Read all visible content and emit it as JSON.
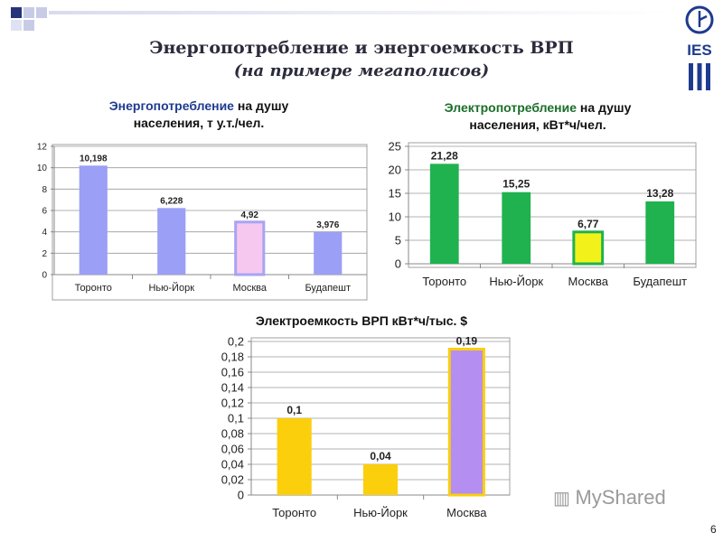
{
  "title": "Энергопотребление и энергоемкость ВРП",
  "subtitle": "(на примере мегаполисов)",
  "watermark": "MyShared",
  "logo_text": "IES",
  "page_number": "6",
  "chart_data": [
    {
      "type": "bar",
      "title_highlight": "Энергопотребление",
      "title_rest": " на душу",
      "title_line2": "населения, т у.т./чел.",
      "categories": [
        "Торонто",
        "Нью-Йорк",
        "Москва",
        "Будапешт"
      ],
      "values": [
        10.198,
        6.228,
        4.92,
        3.976
      ],
      "value_labels": [
        "10,198",
        "6,228",
        "4,92",
        "3,976"
      ],
      "ylim": [
        0,
        12
      ],
      "yticks": [
        "0",
        "2",
        "4",
        "6",
        "8",
        "10",
        "12"
      ],
      "colors": [
        "#9b9ff5",
        "#9b9ff5",
        "#f6c8f0",
        "#9b9ff5"
      ],
      "strokes": [
        "none",
        "none",
        "#a7a4f2",
        "none"
      ],
      "grid": true
    },
    {
      "type": "bar",
      "title_highlight": "Электропотребление",
      "title_rest": " на душу",
      "title_line2": "населения, кВт*ч/чел.",
      "categories": [
        "Торонто",
        "Нью-Йорк",
        "Москва",
        "Будапешт"
      ],
      "values": [
        21.28,
        15.25,
        6.77,
        13.28
      ],
      "value_labels": [
        "21,28",
        "15,25",
        "6,77",
        "13,28"
      ],
      "ylim": [
        0,
        25
      ],
      "yticks": [
        "0",
        "5",
        "10",
        "15",
        "20",
        "25"
      ],
      "colors": [
        "#1fb24f",
        "#1fb24f",
        "#f2f21a",
        "#1fb24f"
      ],
      "strokes": [
        "none",
        "none",
        "#1fb24f",
        "none"
      ],
      "grid": true
    },
    {
      "type": "bar",
      "title": "Электроемкость ВРП кВт*ч/тыс. $",
      "categories": [
        "Торонто",
        "Нью-Йорк",
        "Москва"
      ],
      "values": [
        0.1,
        0.04,
        0.19
      ],
      "value_labels": [
        "0,1",
        "0,04",
        "0,19"
      ],
      "ylim": [
        0,
        0.2
      ],
      "yticks": [
        "0",
        "0,02",
        "0,04",
        "0,06",
        "0,08",
        "0,1",
        "0,12",
        "0,14",
        "0,16",
        "0,18",
        "0,2"
      ],
      "colors": [
        "#fbcf0c",
        "#fbcf0c",
        "#b48ef0"
      ],
      "strokes": [
        "none",
        "none",
        "#fbcf0c"
      ],
      "grid": true
    }
  ]
}
